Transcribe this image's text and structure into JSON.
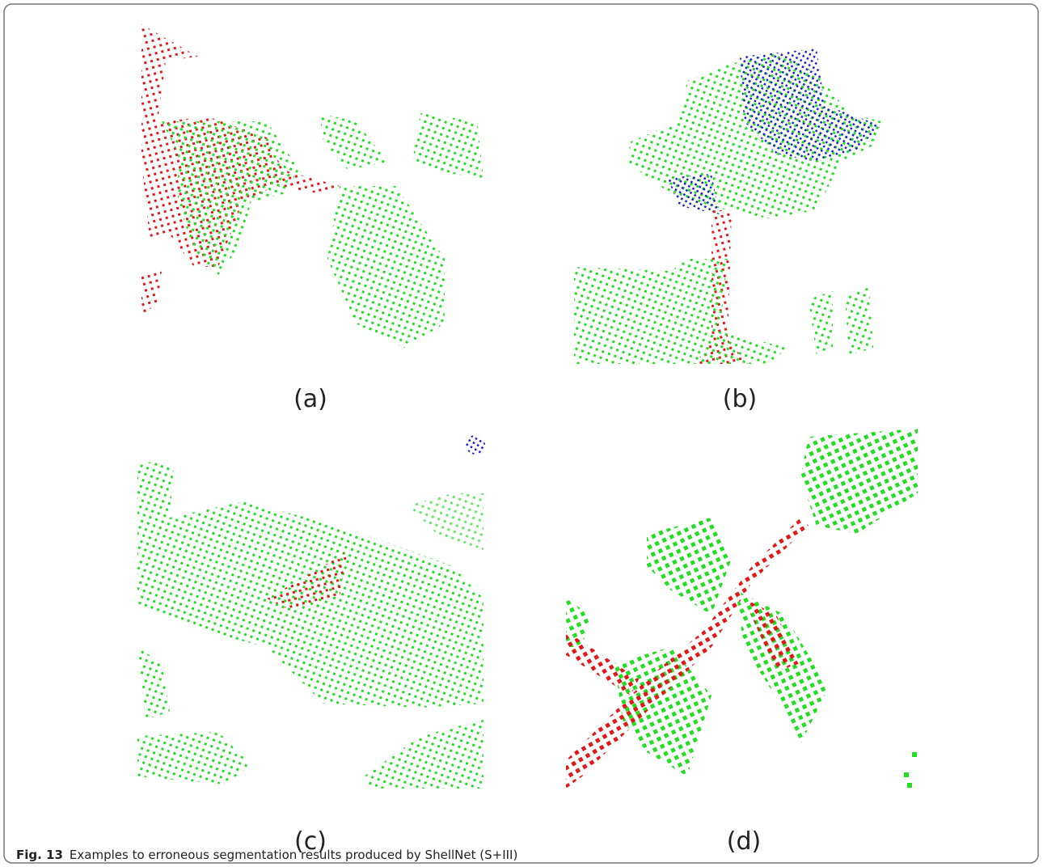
{
  "figure": {
    "panels": [
      {
        "label": "(a)"
      },
      {
        "label": "(b)"
      },
      {
        "label": "(c)"
      },
      {
        "label": "(d)"
      }
    ],
    "caption": {
      "number": "Fig. 13",
      "text": "Examples to erroneous segmentation results produced by ShellNet (S+III)"
    }
  }
}
